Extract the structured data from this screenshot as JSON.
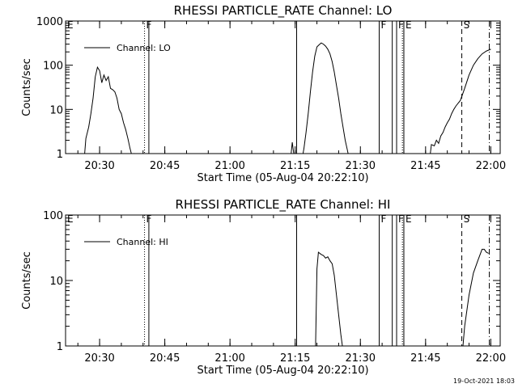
{
  "chart_data": [
    {
      "type": "line",
      "title": "RHESSI PARTICLE_RATE Channel: LO",
      "xlabel": "Start Time (05-Aug-04 20:22:10)",
      "ylabel": "Counts/sec",
      "yscale": "log",
      "xlim": [
        "20:22:10",
        "22:02:10"
      ],
      "ylim": [
        1,
        1000
      ],
      "xticks": [
        "20:30",
        "20:45",
        "21:00",
        "21:15",
        "21:30",
        "21:45",
        "22:00"
      ],
      "yticks": [
        "1",
        "10",
        "100",
        "1000"
      ],
      "legend": "Channel: LO",
      "legend_position": "top-left",
      "series": [
        {
          "name": "Channel: LO",
          "x": [
            "20:26:30",
            "20:26:50",
            "20:27:30",
            "20:28:00",
            "20:28:30",
            "20:29:00",
            "20:29:30",
            "20:30:00",
            "20:30:30",
            "20:31:00",
            "20:31:30",
            "20:32:00",
            "20:32:30",
            "20:33:00",
            "20:33:30",
            "20:34:00",
            "20:34:30",
            "20:35:00",
            "20:35:30",
            "20:36:00",
            "20:36:30",
            "20:37:00",
            "20:37:30",
            "20:38:00",
            "20:38:30",
            "20:39:00",
            "21:14:00",
            "21:14:20",
            "21:14:40",
            "21:15:00",
            "21:16:40",
            "21:17:00",
            "21:17:30",
            "21:18:00",
            "21:18:30",
            "21:19:00",
            "21:19:30",
            "21:20:00",
            "21:20:30",
            "21:21:00",
            "21:21:30",
            "21:22:00",
            "21:22:30",
            "21:23:00",
            "21:23:30",
            "21:24:00",
            "21:24:30",
            "21:25:00",
            "21:25:30",
            "21:26:00",
            "21:26:30",
            "21:27:00",
            "21:27:20",
            "21:46:00",
            "21:46:20",
            "21:47:00",
            "21:47:30",
            "21:48:00",
            "21:48:30",
            "21:49:00",
            "21:49:30",
            "21:50:00",
            "21:50:30",
            "21:51:00",
            "21:51:30",
            "21:52:00",
            "21:53:00",
            "21:54:00",
            "21:55:00",
            "21:56:00",
            "21:57:00",
            "21:58:00",
            "21:59:00",
            "22:00:00"
          ],
          "y": [
            0.8,
            2.2,
            4,
            8,
            18,
            55,
            90,
            75,
            40,
            60,
            45,
            55,
            30,
            28,
            25,
            18,
            10,
            8,
            5,
            3.5,
            2.2,
            1.3,
            0.8,
            1,
            0.9,
            0.8,
            0.8,
            1.8,
            1,
            0.8,
            0.8,
            1.3,
            3,
            8,
            25,
            70,
            160,
            260,
            290,
            320,
            300,
            270,
            230,
            180,
            120,
            70,
            35,
            18,
            8,
            4,
            2,
            1.2,
            0.8,
            0.8,
            1.6,
            1.5,
            2,
            1.7,
            2.5,
            3,
            4,
            5,
            6,
            8,
            10,
            12,
            16,
            30,
            60,
            100,
            140,
            180,
            210,
            230
          ]
        }
      ]
    },
    {
      "type": "line",
      "title": "RHESSI PARTICLE_RATE Channel: HI",
      "xlabel": "Start Time (05-Aug-04 20:22:10)",
      "ylabel": "Counts/sec",
      "yscale": "log",
      "xlim": [
        "20:22:10",
        "22:02:10"
      ],
      "ylim": [
        1,
        100
      ],
      "xticks": [
        "20:30",
        "20:45",
        "21:00",
        "21:15",
        "21:30",
        "21:45",
        "22:00"
      ],
      "yticks": [
        "1",
        "10",
        "100"
      ],
      "legend": "Channel: HI",
      "legend_position": "top-left",
      "series": [
        {
          "name": "Channel: HI",
          "x": [
            "21:19:40",
            "21:20:00",
            "21:20:20",
            "21:21:00",
            "21:21:30",
            "21:22:00",
            "21:22:30",
            "21:23:00",
            "21:23:30",
            "21:24:00",
            "21:24:30",
            "21:25:00",
            "21:25:30",
            "21:26:00",
            "21:53:30",
            "21:54:00",
            "21:55:00",
            "21:56:00",
            "21:57:00",
            "21:58:00",
            "21:58:30",
            "21:59:00",
            "21:59:30"
          ],
          "y": [
            0.8,
            15,
            27,
            25,
            24,
            22,
            23,
            20,
            18,
            12,
            6,
            3,
            1.5,
            0.8,
            0.8,
            2,
            6,
            13,
            20,
            30,
            30,
            27,
            26
          ]
        }
      ]
    }
  ],
  "markers": [
    {
      "label": "E",
      "time": "20:22:10",
      "style": "none"
    },
    {
      "label": "F",
      "time": "20:40:20",
      "style": "dotted"
    },
    {
      "label": "",
      "time": "20:41:20",
      "style": "solid"
    },
    {
      "label": "",
      "time": "21:15:20",
      "style": "solid"
    },
    {
      "label": "F",
      "time": "21:34:20",
      "style": "solid"
    },
    {
      "label": "",
      "time": "21:37:20",
      "style": "solid"
    },
    {
      "label": "F",
      "time": "21:38:20",
      "style": "solid"
    },
    {
      "label": "",
      "time": "21:39:40",
      "style": "dotted"
    },
    {
      "label": "E",
      "time": "21:40:00",
      "style": "solid"
    },
    {
      "label": "S",
      "time": "21:53:20",
      "style": "dashed"
    },
    {
      "label": "",
      "time": "21:59:40",
      "style": "dashdot"
    }
  ],
  "timestamp": "19-Oct-2021 18:03",
  "colors": {
    "background": "#ffffff",
    "ink": "#000000"
  }
}
